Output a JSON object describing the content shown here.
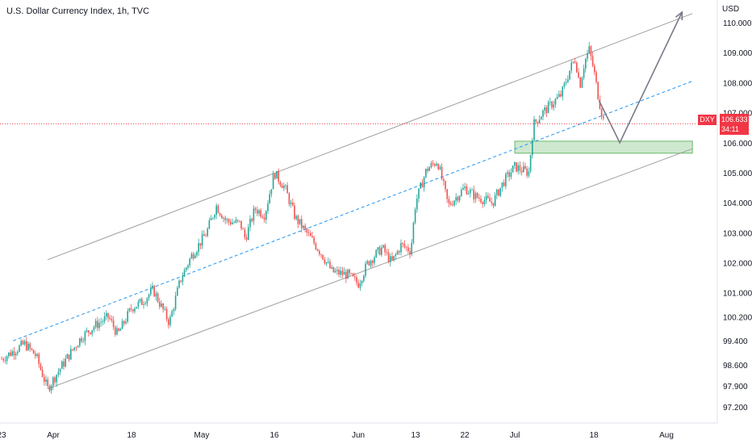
{
  "header": {
    "title": "U.S. Dollar Currency Index, 1h, TVC"
  },
  "price_axis": {
    "unit": "USD",
    "ticks": [
      "110.000",
      "109.000",
      "108.000",
      "107.000",
      "106.000",
      "105.000",
      "104.000",
      "103.000",
      "102.000",
      "101.000",
      "100.200",
      "99.400",
      "98.600",
      "97.900",
      "97.200"
    ]
  },
  "time_axis": {
    "ticks": [
      "23",
      "Apr",
      "18",
      "May",
      "16",
      "Jun",
      "13",
      "22",
      "Jul",
      "18",
      "Aug"
    ]
  },
  "last_price": {
    "symbol": "DXY",
    "value": "106.633",
    "countdown": "34:11"
  },
  "colors": {
    "up": "#26a69a",
    "down": "#ef5350",
    "channel": "#9e9e9e",
    "midline": "#2196f3",
    "zone": "#a5d6a7",
    "last_price": "#f23645",
    "projection": "#787b86"
  },
  "chart_data": {
    "type": "candlestick",
    "title": "U.S. Dollar Currency Index, 1h, TVC",
    "y_unit": "USD",
    "ylim": [
      97.0,
      110.4
    ],
    "path": [
      [
        "Mar 23",
        98.8
      ],
      [
        "Mar 27",
        99.3
      ],
      [
        "Mar 29",
        98.9
      ],
      [
        "Mar 31",
        97.8
      ],
      [
        "Apr 3",
        98.6
      ],
      [
        "Apr 7",
        99.5
      ],
      [
        "Apr 10",
        99.9
      ],
      [
        "Apr 13",
        100.2
      ],
      [
        "Apr 15",
        99.6
      ],
      [
        "Apr 18",
        100.5
      ],
      [
        "Apr 20",
        100.7
      ],
      [
        "Apr 22",
        101.1
      ],
      [
        "Apr 25",
        100.0
      ],
      [
        "Apr 27",
        101.4
      ],
      [
        "Apr 29",
        102.2
      ],
      [
        "May 2",
        103.0
      ],
      [
        "May 4",
        103.9
      ],
      [
        "May 6",
        103.4
      ],
      [
        "May 9",
        103.3
      ],
      [
        "May 10",
        102.8
      ],
      [
        "May 12",
        103.8
      ],
      [
        "May 14",
        103.6
      ],
      [
        "May 16",
        105.0
      ],
      [
        "May 18",
        104.5
      ],
      [
        "May 20",
        103.5
      ],
      [
        "May 23",
        102.8
      ],
      [
        "May 25",
        102.3
      ],
      [
        "May 27",
        101.7
      ],
      [
        "May 30",
        101.6
      ],
      [
        "Jun 1",
        101.3
      ],
      [
        "Jun 3",
        102.0
      ],
      [
        "Jun 6",
        102.5
      ],
      [
        "Jun 8",
        102.0
      ],
      [
        "Jun 10",
        102.6
      ],
      [
        "Jun 12",
        102.4
      ],
      [
        "Jun 13",
        104.0
      ],
      [
        "Jun 15",
        105.1
      ],
      [
        "Jun 17",
        105.4
      ],
      [
        "Jun 19",
        103.9
      ],
      [
        "Jun 22",
        104.5
      ],
      [
        "Jun 24",
        104.2
      ],
      [
        "Jun 27",
        104.0
      ],
      [
        "Jun 29",
        104.7
      ],
      [
        "Jul 1",
        105.2
      ],
      [
        "Jul 4",
        105.0
      ],
      [
        "Jul 5",
        106.6
      ],
      [
        "Jul 7",
        107.0
      ],
      [
        "Jul 11",
        107.6
      ],
      [
        "Jul 13",
        108.5
      ],
      [
        "Jul 14",
        108.8
      ],
      [
        "Jul 15",
        107.9
      ],
      [
        "Jul 16",
        108.7
      ],
      [
        "Jul 17",
        109.1
      ],
      [
        "Jul 18",
        108.4
      ],
      [
        "Jul 19",
        107.4
      ],
      [
        "Jul 20",
        106.63
      ]
    ],
    "channel": {
      "upper": [
        [
          "Mar 31",
          102.1
        ],
        [
          "Aug 6",
          110.3
        ]
      ],
      "lower": [
        [
          "Mar 31",
          97.8
        ],
        [
          "Aug 6",
          105.8
        ]
      ],
      "midline": [
        [
          "Mar 25",
          99.4
        ],
        [
          "Aug 6",
          108.05
        ]
      ]
    },
    "support_zone": {
      "from": "Jul 1",
      "to": "Aug 6",
      "low": 105.65,
      "high": 106.05
    },
    "projection": [
      [
        "Jul 19",
        107.4
      ],
      [
        "Jul 23",
        106.0
      ],
      [
        "Aug 4",
        110.35
      ]
    ],
    "last_price": 106.633
  }
}
